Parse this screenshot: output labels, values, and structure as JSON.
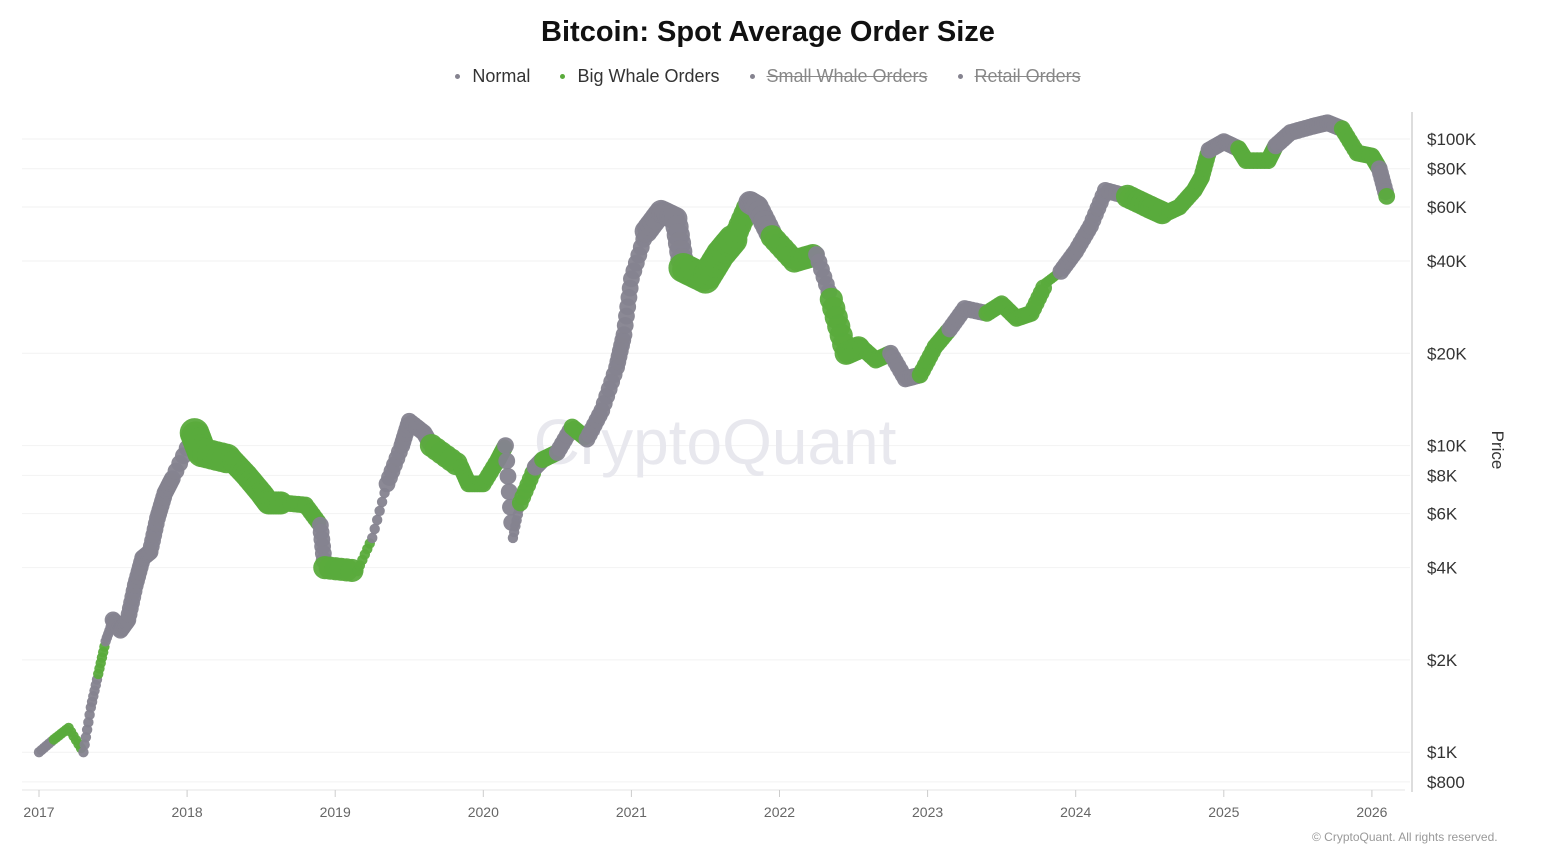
{
  "chart_data": {
    "type": "scatter",
    "title": "Bitcoin: Spot Average Order Size",
    "ylabel": "Price",
    "yscale": "log",
    "ylim": [
      750,
      140000
    ],
    "xlim": [
      2016.95,
      2026.25
    ],
    "grid": true,
    "legend_placement": "top-center",
    "legend": [
      {
        "label": "Normal",
        "color": "#85838f",
        "active": true
      },
      {
        "label": "Big Whale Orders",
        "color": "#5aab3c",
        "active": true
      },
      {
        "label": "Small Whale Orders",
        "color": "#85838f",
        "active": false
      },
      {
        "label": "Retail Orders",
        "color": "#85838f",
        "active": false
      }
    ],
    "x_ticks": [
      {
        "v": 2017,
        "label": "2017"
      },
      {
        "v": 2018,
        "label": "2018"
      },
      {
        "v": 2019,
        "label": "2019"
      },
      {
        "v": 2020,
        "label": "2020"
      },
      {
        "v": 2021,
        "label": "2021"
      },
      {
        "v": 2022,
        "label": "2022"
      },
      {
        "v": 2023,
        "label": "2023"
      },
      {
        "v": 2024,
        "label": "2024"
      },
      {
        "v": 2025,
        "label": "2025"
      },
      {
        "v": 2026,
        "label": "2026"
      }
    ],
    "y_ticks": [
      {
        "v": 800,
        "label": "$800"
      },
      {
        "v": 1000,
        "label": "$1K"
      },
      {
        "v": 2000,
        "label": "$2K"
      },
      {
        "v": 4000,
        "label": "$4K"
      },
      {
        "v": 6000,
        "label": "$6K"
      },
      {
        "v": 8000,
        "label": "$8K"
      },
      {
        "v": 10000,
        "label": "$10K"
      },
      {
        "v": 20000,
        "label": "$20K"
      },
      {
        "v": 40000,
        "label": "$40K"
      },
      {
        "v": 60000,
        "label": "$60K"
      },
      {
        "v": 80000,
        "label": "$80K"
      },
      {
        "v": 100000,
        "label": "$100K"
      }
    ],
    "points_format": [
      "year",
      "price",
      "class(0=Normal,1=Big Whale)",
      "marker_weight"
    ],
    "points": [
      [
        2017.0,
        1000,
        0,
        1
      ],
      [
        2017.1,
        1100,
        1,
        1
      ],
      [
        2017.2,
        1200,
        1,
        1
      ],
      [
        2017.3,
        1000,
        0,
        1
      ],
      [
        2017.35,
        1400,
        0,
        1
      ],
      [
        2017.4,
        1800,
        1,
        1
      ],
      [
        2017.45,
        2300,
        0,
        1
      ],
      [
        2017.5,
        2700,
        0,
        2
      ],
      [
        2017.55,
        2500,
        0,
        2
      ],
      [
        2017.6,
        2700,
        0,
        2
      ],
      [
        2017.65,
        3500,
        0,
        2
      ],
      [
        2017.7,
        4300,
        0,
        2
      ],
      [
        2017.75,
        4500,
        0,
        2
      ],
      [
        2017.8,
        5800,
        0,
        2
      ],
      [
        2017.85,
        7000,
        0,
        2
      ],
      [
        2017.9,
        7800,
        0,
        2
      ],
      [
        2018.05,
        11000,
        1,
        4
      ],
      [
        2018.1,
        9500,
        1,
        4
      ],
      [
        2018.3,
        9000,
        1,
        3
      ],
      [
        2018.4,
        8000,
        1,
        3
      ],
      [
        2018.5,
        7000,
        1,
        3
      ],
      [
        2018.55,
        6500,
        1,
        3
      ],
      [
        2018.65,
        6500,
        1,
        2
      ],
      [
        2018.8,
        6400,
        1,
        2
      ],
      [
        2018.9,
        5500,
        0,
        2
      ],
      [
        2018.93,
        4000,
        1,
        3
      ],
      [
        2019.15,
        3900,
        1,
        1
      ],
      [
        2019.25,
        5000,
        0,
        1
      ],
      [
        2019.35,
        7500,
        0,
        2
      ],
      [
        2019.45,
        10000,
        0,
        2
      ],
      [
        2019.5,
        12000,
        0,
        2
      ],
      [
        2019.6,
        11000,
        0,
        2
      ],
      [
        2019.65,
        10000,
        1,
        3
      ],
      [
        2019.85,
        8500,
        1,
        2
      ],
      [
        2019.9,
        7500,
        1,
        2
      ],
      [
        2020.0,
        7500,
        1,
        2
      ],
      [
        2020.1,
        9000,
        1,
        2
      ],
      [
        2020.15,
        10000,
        0,
        2
      ],
      [
        2020.2,
        5000,
        0,
        1
      ],
      [
        2020.25,
        6500,
        1,
        2
      ],
      [
        2020.35,
        8500,
        0,
        2
      ],
      [
        2020.4,
        9000,
        1,
        2
      ],
      [
        2020.5,
        9500,
        0,
        2
      ],
      [
        2020.6,
        11500,
        1,
        2
      ],
      [
        2020.7,
        10500,
        0,
        2
      ],
      [
        2020.8,
        13000,
        0,
        2
      ],
      [
        2020.9,
        18000,
        0,
        2
      ],
      [
        2020.95,
        23000,
        0,
        2
      ],
      [
        2021.0,
        35000,
        0,
        2
      ],
      [
        2021.1,
        50000,
        0,
        3
      ],
      [
        2021.2,
        58000,
        0,
        3
      ],
      [
        2021.3,
        55000,
        0,
        3
      ],
      [
        2021.35,
        38000,
        1,
        4
      ],
      [
        2021.5,
        35000,
        1,
        4
      ],
      [
        2021.6,
        42000,
        1,
        4
      ],
      [
        2021.7,
        48000,
        1,
        3
      ],
      [
        2021.8,
        62000,
        0,
        3
      ],
      [
        2021.85,
        60000,
        0,
        3
      ],
      [
        2021.95,
        48000,
        1,
        3
      ],
      [
        2022.1,
        40000,
        1,
        3
      ],
      [
        2022.25,
        42000,
        0,
        2
      ],
      [
        2022.35,
        30000,
        1,
        3
      ],
      [
        2022.45,
        20000,
        1,
        3
      ],
      [
        2022.55,
        21000,
        1,
        2
      ],
      [
        2022.65,
        19000,
        1,
        2
      ],
      [
        2022.75,
        20000,
        0,
        2
      ],
      [
        2022.85,
        16500,
        0,
        2
      ],
      [
        2022.95,
        17000,
        1,
        2
      ],
      [
        2023.05,
        21000,
        1,
        2
      ],
      [
        2023.15,
        24000,
        0,
        2
      ],
      [
        2023.25,
        28000,
        0,
        2
      ],
      [
        2023.4,
        27000,
        1,
        2
      ],
      [
        2023.5,
        29000,
        1,
        2
      ],
      [
        2023.6,
        26000,
        1,
        2
      ],
      [
        2023.7,
        27000,
        1,
        2
      ],
      [
        2023.8,
        34000,
        1,
        1
      ],
      [
        2023.9,
        37000,
        0,
        2
      ],
      [
        2024.0,
        43000,
        0,
        2
      ],
      [
        2024.1,
        52000,
        0,
        2
      ],
      [
        2024.2,
        68000,
        0,
        2
      ],
      [
        2024.35,
        65000,
        1,
        3
      ],
      [
        2024.5,
        60000,
        1,
        3
      ],
      [
        2024.6,
        57000,
        1,
        2
      ],
      [
        2024.7,
        60000,
        1,
        2
      ],
      [
        2024.8,
        68000,
        1,
        2
      ],
      [
        2024.85,
        75000,
        1,
        2
      ],
      [
        2024.9,
        92000,
        0,
        2
      ],
      [
        2025.0,
        98000,
        0,
        2
      ],
      [
        2025.1,
        93000,
        1,
        2
      ],
      [
        2025.15,
        85000,
        1,
        2
      ],
      [
        2025.3,
        85000,
        1,
        2
      ],
      [
        2025.35,
        95000,
        0,
        2
      ],
      [
        2025.45,
        105000,
        0,
        2
      ],
      [
        2025.6,
        110000,
        0,
        2
      ],
      [
        2025.7,
        113000,
        0,
        2
      ],
      [
        2025.8,
        108000,
        1,
        2
      ],
      [
        2025.9,
        90000,
        1,
        2
      ],
      [
        2026.0,
        88000,
        1,
        2
      ],
      [
        2026.05,
        80000,
        0,
        2
      ],
      [
        2026.1,
        65000,
        1,
        2
      ]
    ]
  },
  "watermark": "CryptoQuant",
  "copyright": "© CryptoQuant. All rights reserved."
}
